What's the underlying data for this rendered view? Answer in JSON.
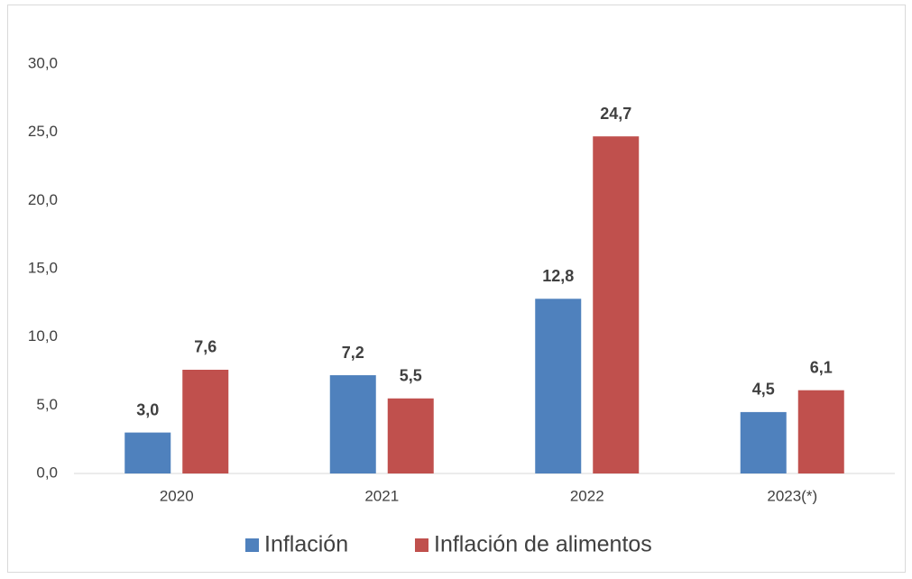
{
  "chart_data": {
    "type": "bar",
    "categories": [
      "2020",
      "2021",
      "2022",
      "2023(*)"
    ],
    "series": [
      {
        "name": "Inflación",
        "color": "#4f81bd",
        "values": [
          3.0,
          7.2,
          12.8,
          4.5
        ],
        "value_labels": [
          "3,0",
          "7,2",
          "12,8",
          "4,5"
        ]
      },
      {
        "name": "Inflación de alimentos",
        "color": "#c0504d",
        "values": [
          7.6,
          5.5,
          24.7,
          6.1
        ],
        "value_labels": [
          "7,6",
          "5,5",
          "24,7",
          "6,1"
        ]
      }
    ],
    "ylim": [
      0,
      30
    ],
    "yticks": [
      {
        "value": 0,
        "label": "0,0"
      },
      {
        "value": 5,
        "label": "5,0"
      },
      {
        "value": 10,
        "label": "10,0"
      },
      {
        "value": 15,
        "label": "15,0"
      },
      {
        "value": 20,
        "label": "20,0"
      },
      {
        "value": 25,
        "label": "25,0"
      },
      {
        "value": 30,
        "label": "30,0"
      }
    ],
    "grid": false,
    "legend": "bottom"
  }
}
